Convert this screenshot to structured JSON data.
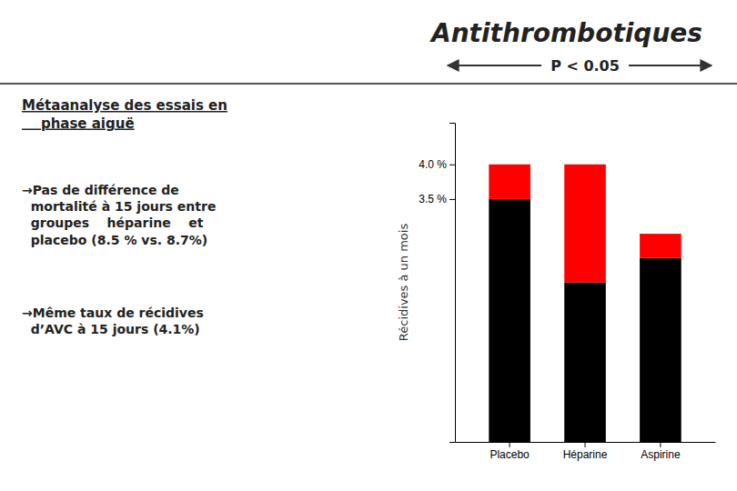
{
  "chart_data": {
    "type": "bar",
    "title": "Antithrombotiques",
    "categories": [
      "Placebo",
      "Héparine",
      "Aspirine"
    ],
    "series": [
      {
        "color": "#000000",
        "values": [
          3.5,
          2.3,
          2.65
        ]
      },
      {
        "color": "#ff0000",
        "values": [
          0.5,
          1.7,
          0.35
        ]
      }
    ],
    "stacked": true,
    "ylabel": "Récidives à un mois",
    "ylim": [
      0,
      4.6
    ],
    "yticks": [
      {
        "value": 3.5,
        "label": "3.5 %"
      },
      {
        "value": 4.0,
        "label": "4.0 %"
      }
    ],
    "grid": false,
    "annotations": [
      "P < 0.05",
      "Métaanalyse des essais en\n    phase aiguë",
      "→Pas de différence de\n  mortalité à 15 jours entre\n  groupes    héparine    et\n  placebo (8.5 % vs. 8.7%)",
      "→Même taux de récidives\n  d’AVC à 15 jours (4.1%)"
    ]
  }
}
